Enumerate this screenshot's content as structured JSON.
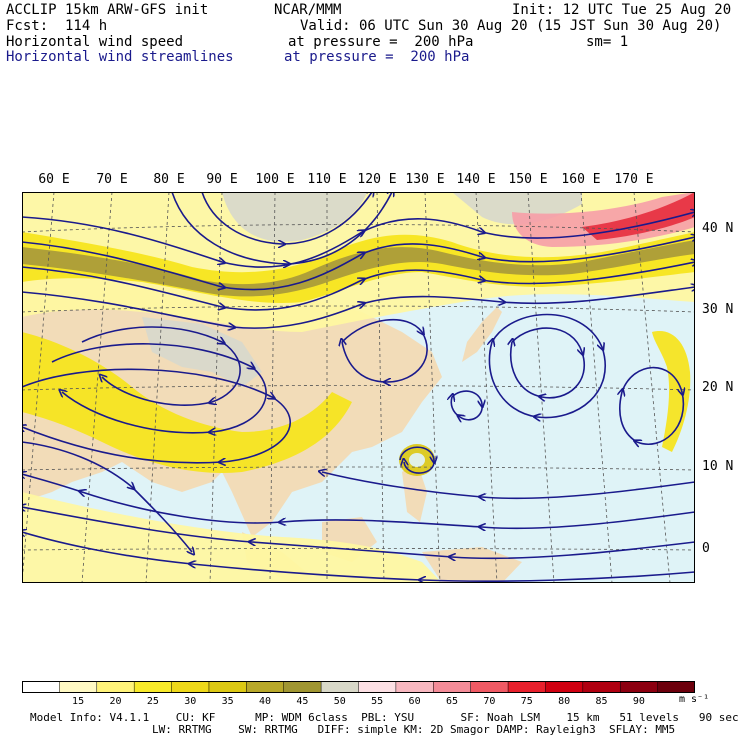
{
  "header": {
    "line1_left": "ACCLIP 15km ARW-GFS init",
    "line1_center": "NCAR/MMM",
    "line1_right": "Init: 12 UTC Tue 25 Aug 20",
    "line2_left": "Fcst:  114 h",
    "line2_right": "Valid: 06 UTC Sun 30 Aug 20 (15 JST Sun 30 Aug 20)",
    "field1_name": "Horizontal wind speed",
    "field1_level": "at pressure =  200 hPa",
    "field1_sm": "sm= 1",
    "field2_name": "Horizontal wind streamlines",
    "field2_level": "at pressure =  200 hPa"
  },
  "map": {
    "lon_labels": [
      "60 E",
      "70 E",
      "80 E",
      "90 E",
      "100 E",
      "110 E",
      "120 E",
      "130 E",
      "140 E",
      "150 E",
      "160 E",
      "170 E"
    ],
    "lat_labels": [
      "40 N",
      "30 N",
      "20 N",
      "10 N",
      "0"
    ],
    "colors": {
      "ocean_calm": "#dff3f7",
      "land": "#f2dcb8",
      "yellow_light": "#fff7a0",
      "yellow": "#f6e41a",
      "gold": "#dcc814",
      "olive": "#a89a3a",
      "grey": "#d8d8cc",
      "pink": "#f6a0a8",
      "red": "#e63040",
      "streamline": "#1a1a8c"
    }
  },
  "colorbar": {
    "labels": [
      "15",
      "20",
      "25",
      "30",
      "35",
      "40",
      "45",
      "50",
      "55",
      "60",
      "65",
      "70",
      "75",
      "80",
      "85",
      "90"
    ],
    "unit": "m s⁻¹",
    "colors": [
      "#ffffff",
      "#fff9c4",
      "#fff37a",
      "#f8ea2a",
      "#eed81a",
      "#dcc814",
      "#b8a82a",
      "#a09632",
      "#d8d8c8",
      "#fce0e4",
      "#f8b8c0",
      "#f48c98",
      "#f05a64",
      "#e8202c",
      "#d00010",
      "#b00010",
      "#8c0010",
      "#6c000c"
    ]
  },
  "footer": {
    "line1": "Model Info: V4.1.1    CU: KF      MP: WDM 6class  PBL: YSU       SF: Noah LSM    15 km   51 levels   90 sec",
    "line2": "LW: RRTMG    SW: RRTMG   DIFF: simple KM: 2D Smagor DAMP: Rayleigh3  SFLAY: MM5"
  }
}
